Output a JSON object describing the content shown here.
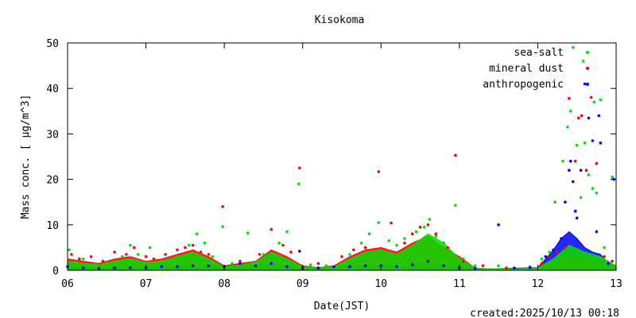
{
  "chart_data": {
    "type": "scatter",
    "title": "Kisokoma",
    "xlabel": "Date(JST)",
    "ylabel": "Mass conc. [ μg/m^3]",
    "x_ticks": [
      "06",
      "07",
      "08",
      "09",
      "10",
      "11",
      "12",
      "13"
    ],
    "y_ticks": [
      "0",
      "10",
      "20",
      "30",
      "40",
      "50"
    ],
    "xlim": [
      6,
      13
    ],
    "ylim": [
      0,
      50
    ],
    "legend_position": "top-right",
    "grid": false,
    "series": [
      {
        "name": "sea-salt",
        "color": "#00e000",
        "points": [
          [
            6.02,
            4.5
          ],
          [
            6.1,
            1.8
          ],
          [
            6.2,
            2.5
          ],
          [
            6.35,
            1.2
          ],
          [
            6.5,
            1.5
          ],
          [
            6.7,
            3.0
          ],
          [
            6.8,
            5.5
          ],
          [
            6.9,
            3.5
          ],
          [
            7.05,
            5.0
          ],
          [
            7.2,
            2.0
          ],
          [
            7.4,
            3.0
          ],
          [
            7.55,
            5.5
          ],
          [
            7.65,
            8.0
          ],
          [
            7.75,
            6.0
          ],
          [
            7.85,
            3.0
          ],
          [
            7.98,
            9.6
          ],
          [
            8.1,
            1.5
          ],
          [
            8.3,
            8.2
          ],
          [
            8.5,
            3.5
          ],
          [
            8.7,
            6.0
          ],
          [
            8.8,
            8.5
          ],
          [
            8.95,
            19.0
          ],
          [
            9.1,
            1.2
          ],
          [
            9.3,
            1.0
          ],
          [
            9.6,
            3.5
          ],
          [
            9.75,
            6.0
          ],
          [
            9.85,
            8.0
          ],
          [
            9.97,
            10.5
          ],
          [
            10.1,
            6.5
          ],
          [
            10.2,
            5.5
          ],
          [
            10.3,
            7.0
          ],
          [
            10.45,
            8.5
          ],
          [
            10.55,
            9.5
          ],
          [
            10.62,
            11.2
          ],
          [
            10.7,
            7.5
          ],
          [
            10.8,
            6.0
          ],
          [
            10.95,
            14.3
          ],
          [
            11.05,
            2.5
          ],
          [
            11.2,
            1.0
          ],
          [
            11.5,
            1.0
          ],
          [
            11.9,
            0.8
          ],
          [
            12.05,
            2.5
          ],
          [
            12.15,
            4.0
          ],
          [
            12.22,
            15.0
          ],
          [
            12.32,
            24.0
          ],
          [
            12.38,
            31.5
          ],
          [
            12.42,
            35.0
          ],
          [
            12.45,
            49.0
          ],
          [
            12.5,
            27.5
          ],
          [
            12.55,
            16.0
          ],
          [
            12.58,
            46.0
          ],
          [
            12.6,
            28.0
          ],
          [
            12.65,
            21.0
          ],
          [
            12.7,
            18.0
          ],
          [
            12.72,
            37.0
          ],
          [
            12.75,
            17.0
          ],
          [
            12.8,
            37.5
          ],
          [
            12.85,
            5.0
          ],
          [
            12.95,
            20.5
          ]
        ]
      },
      {
        "name": "mineral dust",
        "color": "#ff0000",
        "points": [
          [
            6.05,
            3.5
          ],
          [
            6.15,
            2.5
          ],
          [
            6.3,
            3.0
          ],
          [
            6.45,
            2.0
          ],
          [
            6.6,
            4.0
          ],
          [
            6.75,
            3.5
          ],
          [
            6.85,
            5.0
          ],
          [
            7.0,
            3.0
          ],
          [
            7.1,
            2.5
          ],
          [
            7.25,
            3.5
          ],
          [
            7.4,
            4.5
          ],
          [
            7.5,
            5.0
          ],
          [
            7.6,
            5.5
          ],
          [
            7.7,
            4.0
          ],
          [
            7.8,
            3.5
          ],
          [
            7.98,
            14.0
          ],
          [
            8.2,
            2.0
          ],
          [
            8.45,
            3.5
          ],
          [
            8.6,
            9.0
          ],
          [
            8.75,
            5.5
          ],
          [
            8.85,
            4.0
          ],
          [
            8.96,
            22.5
          ],
          [
            9.2,
            1.5
          ],
          [
            9.5,
            3.0
          ],
          [
            9.65,
            4.5
          ],
          [
            9.8,
            5.0
          ],
          [
            9.97,
            21.7
          ],
          [
            10.13,
            10.4
          ],
          [
            10.3,
            6.0
          ],
          [
            10.4,
            8.0
          ],
          [
            10.5,
            9.5
          ],
          [
            10.6,
            10.0
          ],
          [
            10.7,
            8.0
          ],
          [
            10.85,
            5.0
          ],
          [
            10.95,
            25.3
          ],
          [
            11.05,
            2.0
          ],
          [
            11.3,
            1.0
          ],
          [
            11.6,
            0.5
          ],
          [
            12.05,
            1.5
          ],
          [
            12.15,
            3.0
          ],
          [
            12.25,
            4.0
          ],
          [
            12.35,
            5.0
          ],
          [
            12.4,
            37.8
          ],
          [
            12.48,
            24.0
          ],
          [
            12.52,
            33.5
          ],
          [
            12.56,
            34.0
          ],
          [
            12.62,
            22.0
          ],
          [
            12.68,
            38.0
          ],
          [
            12.75,
            23.5
          ],
          [
            12.85,
            3.0
          ],
          [
            12.95,
            2.0
          ]
        ]
      },
      {
        "name": "anthropogenic",
        "color": "#0000ff",
        "points": [
          [
            6.0,
            0.8
          ],
          [
            6.2,
            0.5
          ],
          [
            6.4,
            0.4
          ],
          [
            6.6,
            0.5
          ],
          [
            6.8,
            0.6
          ],
          [
            7.0,
            0.6
          ],
          [
            7.2,
            0.8
          ],
          [
            7.4,
            0.8
          ],
          [
            7.6,
            1.0
          ],
          [
            7.8,
            1.0
          ],
          [
            8.0,
            0.8
          ],
          [
            8.2,
            1.5
          ],
          [
            8.4,
            1.0
          ],
          [
            8.6,
            1.5
          ],
          [
            8.8,
            0.8
          ],
          [
            8.96,
            4.2
          ],
          [
            9.0,
            0.5
          ],
          [
            9.2,
            0.5
          ],
          [
            9.4,
            0.8
          ],
          [
            9.6,
            0.8
          ],
          [
            9.8,
            1.0
          ],
          [
            10.0,
            1.0
          ],
          [
            10.2,
            0.8
          ],
          [
            10.4,
            1.2
          ],
          [
            10.6,
            2.0
          ],
          [
            10.8,
            1.0
          ],
          [
            11.0,
            0.6
          ],
          [
            11.2,
            0.4
          ],
          [
            11.5,
            10.0
          ],
          [
            11.7,
            0.5
          ],
          [
            11.9,
            0.6
          ],
          [
            12.1,
            3.0
          ],
          [
            12.2,
            4.5
          ],
          [
            12.3,
            7.0
          ],
          [
            12.35,
            15.0
          ],
          [
            12.4,
            22.0
          ],
          [
            12.42,
            24.0
          ],
          [
            12.45,
            19.5
          ],
          [
            12.48,
            13.0
          ],
          [
            12.5,
            11.5
          ],
          [
            12.55,
            22.0
          ],
          [
            12.6,
            41.0
          ],
          [
            12.65,
            33.5
          ],
          [
            12.7,
            28.5
          ],
          [
            12.75,
            8.5
          ],
          [
            12.78,
            34.0
          ],
          [
            12.8,
            28.0
          ],
          [
            12.9,
            1.5
          ],
          [
            12.97,
            20.0
          ]
        ]
      }
    ],
    "baseline_bands": [
      {
        "series": "anthropogenic",
        "x": [
          6.0,
          6.2,
          6.4,
          6.6,
          6.8,
          7.0,
          7.2,
          7.4,
          7.6,
          7.8,
          8.0,
          8.2,
          8.4,
          8.6,
          8.8,
          9.0,
          9.2,
          9.4,
          9.6,
          9.8,
          10.0,
          10.2,
          10.4,
          10.6,
          10.8,
          11.0,
          11.2,
          11.4,
          11.6,
          11.8,
          12.0,
          12.1,
          12.2,
          12.3,
          12.4,
          12.5,
          12.6,
          12.7,
          12.8,
          12.9,
          13.0
        ],
        "y": [
          0.8,
          0.5,
          0.4,
          0.5,
          0.6,
          0.6,
          0.8,
          0.8,
          1.0,
          1.0,
          0.8,
          1.5,
          1.0,
          1.5,
          0.8,
          0.5,
          0.5,
          0.8,
          0.8,
          1.0,
          1.0,
          0.8,
          1.2,
          2.0,
          1.0,
          0.6,
          0.4,
          0.3,
          0.4,
          0.5,
          0.6,
          2.5,
          4.5,
          7.0,
          8.5,
          7.0,
          5.0,
          4.0,
          3.5,
          1.5,
          1.0
        ]
      },
      {
        "series": "mineral dust",
        "x": [
          6.0,
          6.2,
          6.4,
          6.6,
          6.8,
          7.0,
          7.2,
          7.4,
          7.6,
          7.8,
          8.0,
          8.2,
          8.4,
          8.6,
          8.8,
          9.0,
          9.2,
          9.4,
          9.6,
          9.8,
          10.0,
          10.2,
          10.4,
          10.6,
          10.8,
          11.0,
          11.2,
          11.4,
          11.6,
          11.8,
          12.0,
          12.2,
          12.4,
          12.6,
          12.8,
          13.0
        ],
        "y": [
          2.5,
          2.0,
          1.5,
          2.5,
          3.0,
          2.0,
          2.5,
          3.5,
          4.5,
          3.0,
          1.0,
          1.5,
          2.0,
          4.5,
          3.0,
          1.0,
          0.6,
          1.0,
          3.0,
          4.5,
          5.0,
          4.0,
          6.0,
          7.5,
          5.0,
          3.0,
          0.5,
          0.3,
          0.3,
          0.4,
          0.5,
          2.0,
          3.5,
          3.0,
          2.5,
          1.0
        ]
      },
      {
        "series": "sea-salt",
        "x": [
          6.0,
          6.2,
          6.4,
          6.6,
          6.8,
          7.0,
          7.2,
          7.4,
          7.6,
          7.8,
          8.0,
          8.2,
          8.4,
          8.6,
          8.8,
          9.0,
          9.2,
          9.4,
          9.6,
          9.8,
          10.0,
          10.2,
          10.4,
          10.6,
          10.8,
          11.0,
          11.2,
          11.4,
          11.6,
          11.8,
          12.0,
          12.2,
          12.4,
          12.6,
          12.8,
          13.0
        ],
        "y": [
          2.0,
          1.5,
          1.2,
          2.0,
          2.5,
          1.8,
          2.0,
          3.0,
          4.0,
          2.5,
          0.8,
          1.2,
          1.8,
          4.0,
          2.5,
          0.8,
          0.5,
          0.8,
          2.5,
          4.0,
          4.5,
          3.5,
          5.5,
          8.0,
          6.0,
          2.5,
          0.5,
          0.3,
          0.3,
          0.4,
          0.5,
          2.5,
          5.5,
          4.0,
          3.0,
          1.0
        ]
      }
    ]
  },
  "footer": {
    "created": "created:2025/10/13 00:18"
  }
}
